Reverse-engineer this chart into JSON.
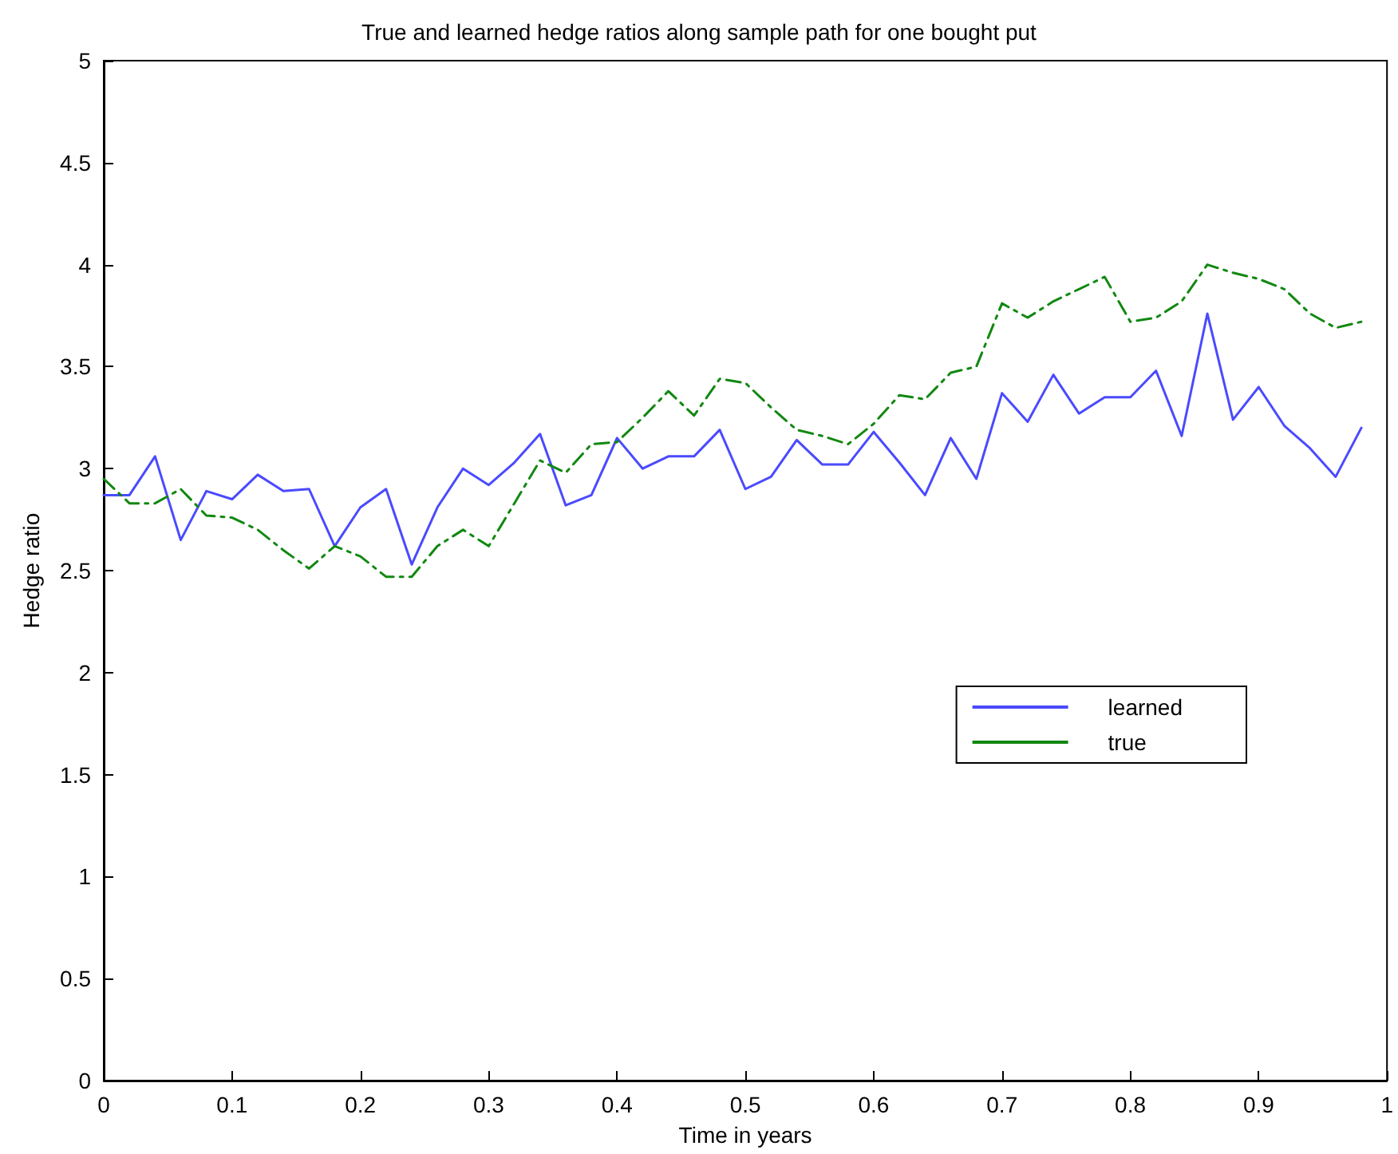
{
  "chart_data": {
    "type": "line",
    "title": "True and learned hedge ratios along sample path for one bought put",
    "xlabel": "Time in years",
    "ylabel": "Hedge ratio",
    "x": [
      0,
      0.02,
      0.04,
      0.06,
      0.08,
      0.1,
      0.12,
      0.14,
      0.16,
      0.18,
      0.2,
      0.22,
      0.24,
      0.26,
      0.28,
      0.3,
      0.32,
      0.34,
      0.36,
      0.38,
      0.4,
      0.42,
      0.44,
      0.46,
      0.48,
      0.5,
      0.52,
      0.54,
      0.56,
      0.58,
      0.6,
      0.62,
      0.64,
      0.66,
      0.68,
      0.7,
      0.72,
      0.74,
      0.76,
      0.78,
      0.8,
      0.82,
      0.84,
      0.86,
      0.88,
      0.9,
      0.92,
      0.94,
      0.96,
      0.98
    ],
    "series": [
      {
        "name": "learned",
        "color": "#4a4aff",
        "line_style": "solid",
        "values": [
          2.87,
          2.87,
          3.06,
          2.65,
          2.89,
          2.85,
          2.97,
          2.89,
          2.9,
          2.62,
          2.81,
          2.9,
          2.53,
          2.81,
          3.0,
          2.92,
          3.03,
          3.17,
          2.82,
          2.87,
          3.15,
          3.0,
          3.06,
          3.06,
          3.19,
          2.9,
          2.96,
          3.14,
          3.02,
          3.02,
          3.18,
          3.03,
          2.87,
          3.15,
          2.95,
          3.37,
          3.23,
          3.46,
          3.27,
          3.35,
          3.35,
          3.48,
          3.16,
          3.76,
          3.24,
          3.4,
          3.21,
          3.1,
          2.96,
          3.2
        ]
      },
      {
        "name": "true",
        "color": "#118811",
        "line_style": "dashed",
        "values": [
          2.95,
          2.83,
          2.83,
          2.9,
          2.77,
          2.76,
          2.7,
          2.6,
          2.51,
          2.62,
          2.57,
          2.47,
          2.47,
          2.62,
          2.7,
          2.62,
          2.83,
          3.04,
          2.98,
          3.12,
          3.13,
          3.25,
          3.38,
          3.26,
          3.44,
          3.42,
          3.3,
          3.19,
          3.16,
          3.12,
          3.22,
          3.36,
          3.34,
          3.47,
          3.5,
          3.81,
          3.74,
          3.82,
          3.88,
          3.94,
          3.72,
          3.74,
          3.82,
          4.0,
          3.96,
          3.93,
          3.88,
          3.76,
          3.69,
          3.72
        ]
      }
    ],
    "xlim": [
      0,
      1
    ],
    "xticks": [
      0,
      0.1,
      0.2,
      0.3,
      0.4,
      0.5,
      0.6,
      0.7,
      0.8,
      0.9,
      1
    ],
    "ylim": [
      0,
      5
    ],
    "yticks": [
      0,
      0.5,
      1,
      1.5,
      2,
      2.5,
      3,
      3.5,
      4,
      4.5,
      5
    ],
    "grid": false,
    "legend": "right",
    "marker": "none"
  }
}
